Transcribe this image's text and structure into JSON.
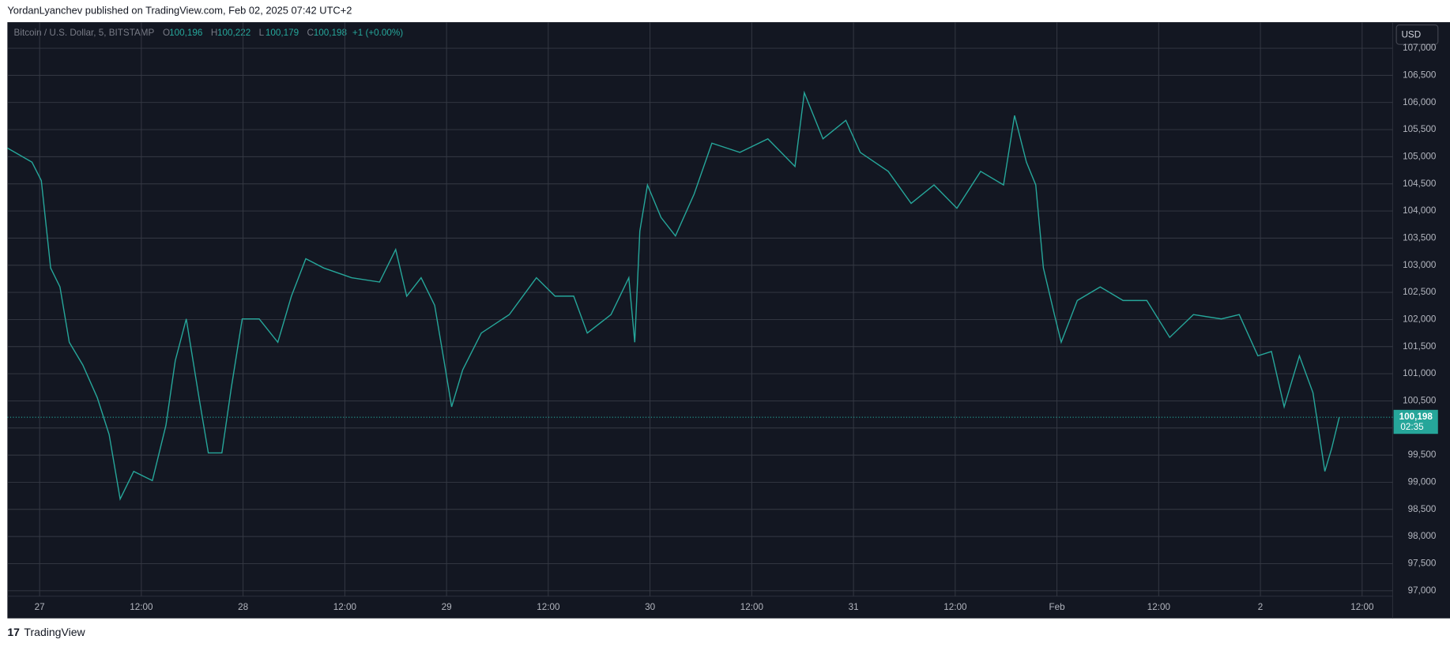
{
  "chart_data": {
    "type": "line",
    "publisher_line": "YordanLyanchev published on TradingView.com, Feb 02, 2025 07:42 UTC+2",
    "title": "Bitcoin / U.S. Dollar, 5, BITSTAMP",
    "ohlc": [
      {
        "name": "O",
        "value": 100196,
        "label": "100,196"
      },
      {
        "name": "H",
        "value": 100222,
        "label": "100,222"
      },
      {
        "name": "L",
        "value": 100179,
        "label": "100,179"
      },
      {
        "name": "C",
        "value": 100198,
        "label": "100,198"
      }
    ],
    "change": "+1 (+0.00%)",
    "currency": "USD",
    "last_price": {
      "value": 100198,
      "label": "100,198"
    },
    "countdown": "02:35",
    "footer": "TradingView",
    "grid": true,
    "series": [
      {
        "name": "BTCUSD",
        "color": "#26a69a",
        "x": [
          -3.8,
          -0.9,
          0.2,
          1.3,
          2.4,
          3.5,
          5.1,
          6.8,
          8.2,
          9.5,
          11.1,
          13.3,
          14.9,
          16.0,
          17.3,
          18.8,
          19.9,
          21.5,
          22.6,
          23.9,
          25.9,
          28.1,
          29.7,
          31.4,
          33.5,
          36.8,
          40.1,
          42.0,
          43.3,
          45.0,
          46.6,
          47.7,
          48.6,
          49.9,
          52.1,
          55.4,
          58.6,
          60.8,
          63.0,
          64.6,
          67.4,
          69.5,
          70.2,
          70.8,
          71.7,
          73.3,
          75.0,
          77.2,
          79.3,
          82.6,
          85.9,
          89.1,
          90.2,
          92.4,
          95.1,
          96.8,
          100.1,
          102.8,
          105.5,
          108.2,
          111.0,
          113.7,
          115.0,
          116.4,
          117.5,
          118.4,
          119.7,
          120.5,
          122.4,
          125.1,
          127.8,
          130.6,
          133.3,
          136.1,
          139.4,
          141.5,
          143.7,
          145.3,
          146.8,
          148.6,
          150.2,
          151.6,
          152.4,
          153.3
        ],
        "values": [
          105160,
          104900,
          104560,
          102950,
          102600,
          101580,
          101160,
          100560,
          99880,
          98690,
          99200,
          99030,
          100050,
          101240,
          102010,
          100560,
          99540,
          99540,
          100730,
          102010,
          102010,
          101580,
          102430,
          103120,
          102950,
          102770,
          102690,
          103290,
          102430,
          102770,
          102260,
          101240,
          100390,
          101070,
          101750,
          102090,
          102770,
          102430,
          102430,
          101750,
          102090,
          102770,
          101580,
          103630,
          104480,
          103880,
          103540,
          104310,
          105250,
          105080,
          105330,
          104820,
          106180,
          105330,
          105670,
          105080,
          104730,
          104140,
          104480,
          104050,
          104730,
          104480,
          105760,
          104900,
          104480,
          102950,
          102090,
          101580,
          102350,
          102600,
          102350,
          102350,
          101670,
          102090,
          102010,
          102090,
          101330,
          101410,
          100390,
          101330,
          100650,
          99200,
          99620,
          100198
        ]
      }
    ],
    "xlim": [
      -3.8,
      159.6
    ],
    "xticks": [
      {
        "value": 0,
        "label": "27"
      },
      {
        "value": 12,
        "label": "12:00"
      },
      {
        "value": 24,
        "label": "28"
      },
      {
        "value": 36,
        "label": "12:00"
      },
      {
        "value": 48,
        "label": "29"
      },
      {
        "value": 60,
        "label": "12:00"
      },
      {
        "value": 72,
        "label": "30"
      },
      {
        "value": 84,
        "label": "12:00"
      },
      {
        "value": 96,
        "label": "31"
      },
      {
        "value": 108,
        "label": "12:00"
      },
      {
        "value": 120,
        "label": "Feb"
      },
      {
        "value": 132,
        "label": "12:00"
      },
      {
        "value": 144,
        "label": "2"
      },
      {
        "value": 156,
        "label": "12:00"
      }
    ],
    "ylim": [
      96900,
      107480
    ],
    "yticks": [
      {
        "value": 97000,
        "label": "97,000"
      },
      {
        "value": 97500,
        "label": "97,500"
      },
      {
        "value": 98000,
        "label": "98,000"
      },
      {
        "value": 98500,
        "label": "98,500"
      },
      {
        "value": 99000,
        "label": "99,000"
      },
      {
        "value": 99500,
        "label": "99,500"
      },
      {
        "value": 100000,
        "label": "100,000"
      },
      {
        "value": 100500,
        "label": "100,500"
      },
      {
        "value": 101000,
        "label": "101,000"
      },
      {
        "value": 101500,
        "label": "101,500"
      },
      {
        "value": 102000,
        "label": "102,000"
      },
      {
        "value": 102500,
        "label": "102,500"
      },
      {
        "value": 103000,
        "label": "103,000"
      },
      {
        "value": 103500,
        "label": "103,500"
      },
      {
        "value": 104000,
        "label": "104,000"
      },
      {
        "value": 104500,
        "label": "104,500"
      },
      {
        "value": 105000,
        "label": "105,000"
      },
      {
        "value": 105500,
        "label": "105,500"
      },
      {
        "value": 106000,
        "label": "106,000"
      },
      {
        "value": 106500,
        "label": "106,500"
      },
      {
        "value": 107000,
        "label": "107,000"
      }
    ]
  }
}
